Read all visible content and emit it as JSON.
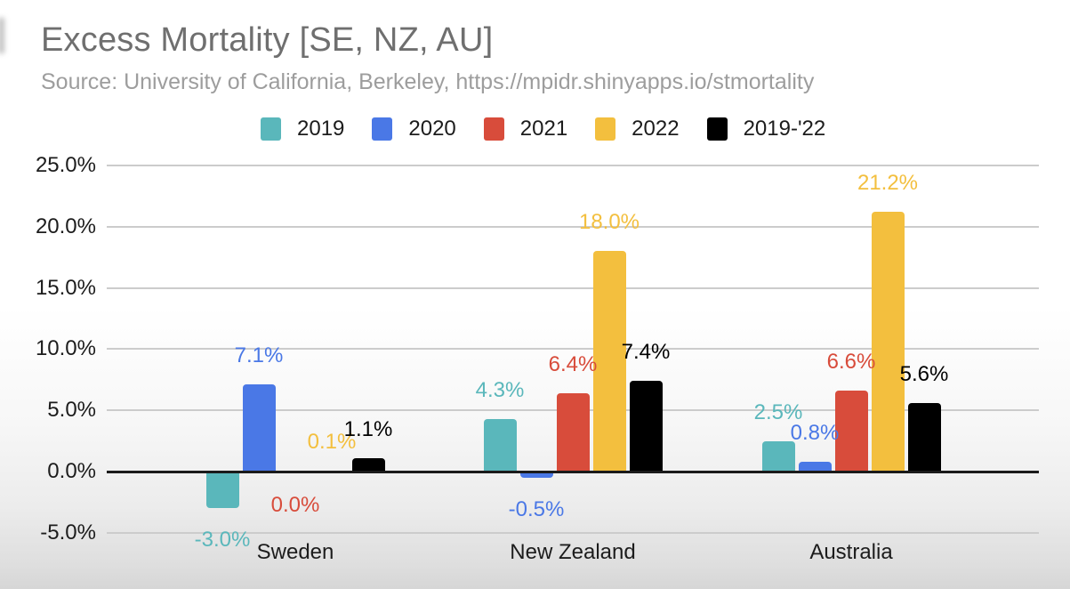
{
  "header": {
    "title": "Excess Mortality [SE, NZ, AU]",
    "subtitle": "Source: University of California, Berkeley, https://mpidr.shinyapps.io/stmortality"
  },
  "chart_data": {
    "type": "bar",
    "title": "Excess Mortality [SE, NZ, AU]",
    "subtitle": "Source: University of California, Berkeley, https://mpidr.shinyapps.io/stmortality",
    "categories": [
      "Sweden",
      "New Zealand",
      "Australia"
    ],
    "series": [
      {
        "name": "2019",
        "color": "#5ab7bb",
        "values": [
          -3.0,
          4.3,
          2.5
        ],
        "labels": [
          "-3.0%",
          "4.3%",
          "2.5%"
        ]
      },
      {
        "name": "2020",
        "color": "#4a78e6",
        "values": [
          7.1,
          -0.5,
          0.8
        ],
        "labels": [
          "7.1%",
          "-0.5%",
          "0.8%"
        ]
      },
      {
        "name": "2021",
        "color": "#d84c3b",
        "values": [
          0.0,
          6.4,
          6.6
        ],
        "labels": [
          "0.0%",
          "6.4%",
          "6.6%"
        ]
      },
      {
        "name": "2022",
        "color": "#f3bf3e",
        "values": [
          0.1,
          18.0,
          21.2
        ],
        "labels": [
          "0.1%",
          "18.0%",
          "21.2%"
        ]
      },
      {
        "name": "2019-'22",
        "color": "#000000",
        "values": [
          1.1,
          7.4,
          5.6
        ],
        "labels": [
          "1.1%",
          "7.4%",
          "5.6%"
        ]
      }
    ],
    "y_ticks": [
      "25.0%",
      "20.0%",
      "15.0%",
      "10.0%",
      "5.0%",
      "0.0%",
      "-5.0%"
    ],
    "y_tick_values": [
      25,
      20,
      15,
      10,
      5,
      0,
      -5
    ],
    "ylim": [
      -5,
      25
    ],
    "xlabel": "",
    "ylabel": "",
    "grid": true,
    "legend_position": "top"
  }
}
